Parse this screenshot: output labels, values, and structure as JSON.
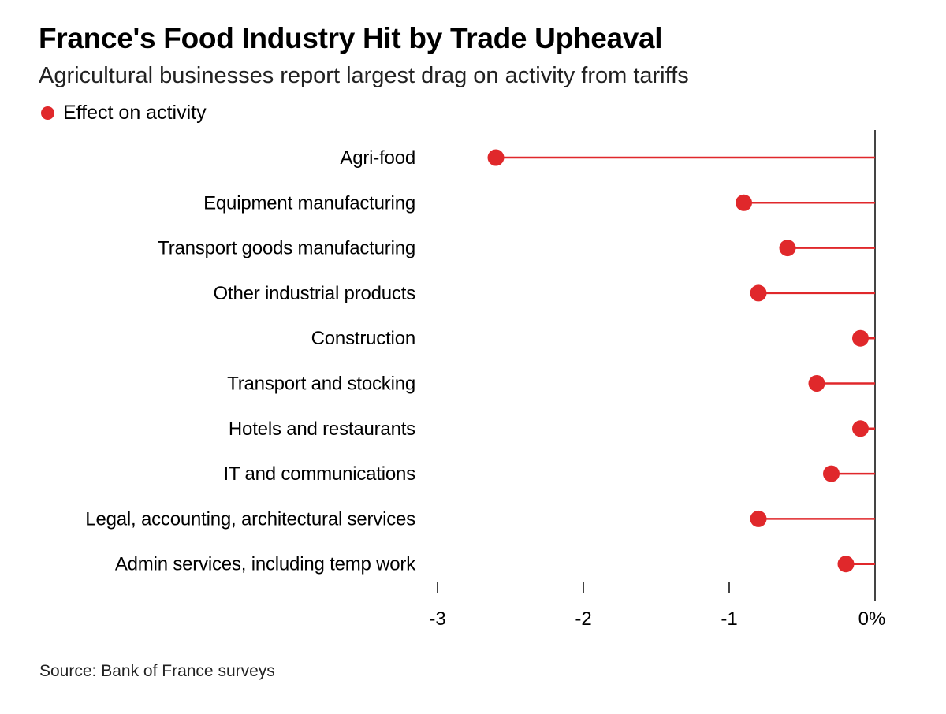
{
  "title": "France's Food Industry Hit by Trade Upheaval",
  "subtitle": "Agricultural businesses report largest drag on activity from tariffs",
  "legend": {
    "label": "Effect on activity"
  },
  "colors": {
    "series": "#e0282b",
    "axis": "#444444",
    "text": "#000000"
  },
  "chart_data": {
    "type": "lollipop",
    "title": "France's Food Industry Hit by Trade Upheaval",
    "subtitle": "Agricultural businesses report largest drag on activity from tariffs",
    "categories": [
      "Agri-food",
      "Equipment manufacturing",
      "Transport goods manufacturing",
      "Other industrial products",
      "Construction",
      "Transport and stocking",
      "Hotels and restaurants",
      "IT and communications",
      "Legal, accounting, architectural services",
      "Admin services, including temp work"
    ],
    "series": [
      {
        "name": "Effect on activity",
        "values": [
          -2.6,
          -0.9,
          -0.6,
          -0.8,
          -0.1,
          -0.4,
          -0.1,
          -0.3,
          -0.8,
          -0.2
        ]
      }
    ],
    "xlim": [
      -3,
      0
    ],
    "xticks": [
      -3,
      -2,
      -1,
      0
    ],
    "xtick_labels": [
      "-3",
      "-2",
      "-1",
      "0%"
    ],
    "xlabel": "",
    "ylabel": "",
    "grid": false,
    "legend_position": "top-left"
  },
  "source": "Source: Bank of France surveys"
}
